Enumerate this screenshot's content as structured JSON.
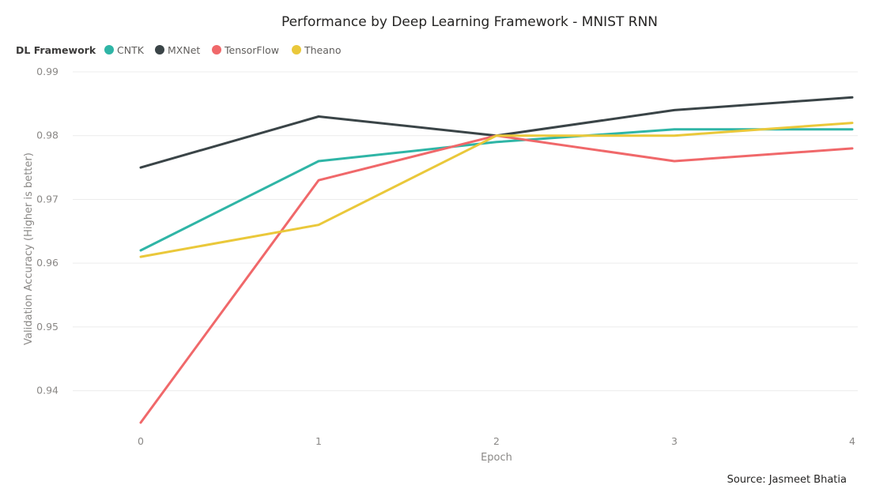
{
  "chart_data": {
    "type": "line",
    "title": "Performance by Deep Learning Framework - MNIST RNN",
    "xlabel": "Epoch",
    "ylabel": "Validation Accuracy (Higher is better)",
    "legend_title": "DL Framework",
    "legend_position": "top-left",
    "grid": true,
    "x": [
      0,
      1,
      2,
      3,
      4
    ],
    "x_tick_labels": [
      "0",
      "1",
      "2",
      "3",
      "4"
    ],
    "ylim": [
      0.935,
      0.99
    ],
    "y_ticks": [
      0.94,
      0.95,
      0.96,
      0.97,
      0.98,
      0.99
    ],
    "y_tick_labels": [
      "0.94",
      "0.95",
      "0.96",
      "0.97",
      "0.98",
      "0.99"
    ],
    "series": [
      {
        "name": "CNTK",
        "color": "#2fb5a6",
        "values": [
          0.962,
          0.976,
          0.979,
          0.981,
          0.981
        ]
      },
      {
        "name": "MXNet",
        "color": "#3a4447",
        "values": [
          0.975,
          0.983,
          0.98,
          0.984,
          0.986
        ]
      },
      {
        "name": "TensorFlow",
        "color": "#f0686a",
        "values": [
          0.935,
          0.973,
          0.98,
          0.976,
          0.978
        ]
      },
      {
        "name": "Theano",
        "color": "#eac83a",
        "values": [
          0.961,
          0.966,
          0.98,
          0.98,
          0.982
        ]
      }
    ],
    "source_note": "Source: Jasmeet Bhatia"
  }
}
